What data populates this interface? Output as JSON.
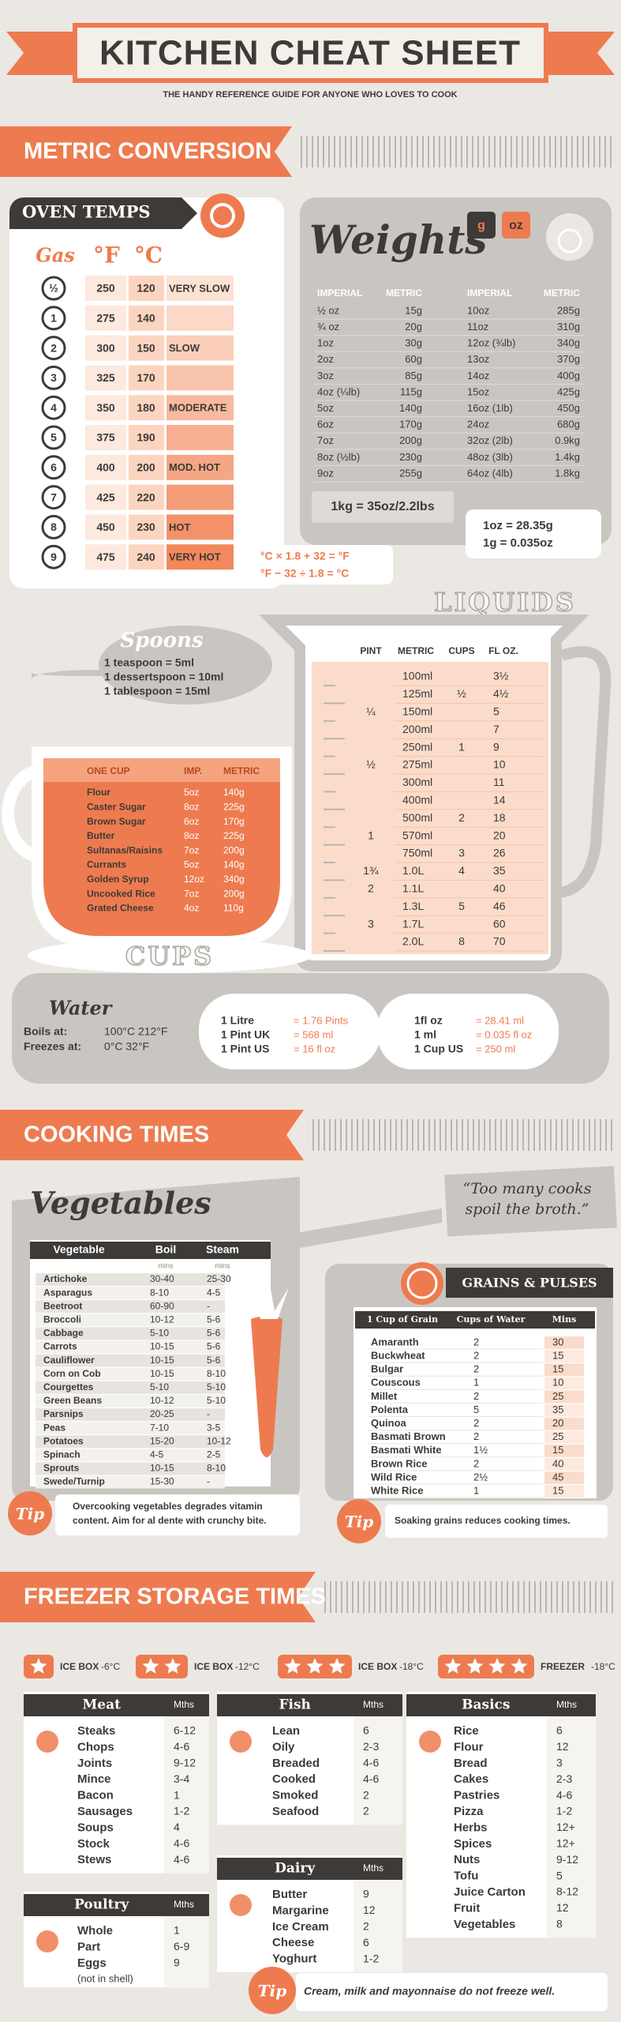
{
  "header": {
    "title": "KITCHEN CHEAT SHEET",
    "subtitle": "THE HANDY REFERENCE GUIDE FOR ANYONE WHO LOVES TO COOK"
  },
  "metric": {
    "banner": "METRIC CONVERSION"
  },
  "oven": {
    "title": "OVEN TEMPS",
    "headers": [
      "Gas",
      "°F",
      "°C"
    ],
    "rows": [
      {
        "gas": "½",
        "f": "250",
        "c": "120",
        "label": "VERY SLOW"
      },
      {
        "gas": "1",
        "f": "275",
        "c": "140"
      },
      {
        "gas": "2",
        "f": "300",
        "c": "150",
        "label": "SLOW"
      },
      {
        "gas": "3",
        "f": "325",
        "c": "170"
      },
      {
        "gas": "4",
        "f": "350",
        "c": "180",
        "label": "MODERATE"
      },
      {
        "gas": "5",
        "f": "375",
        "c": "190"
      },
      {
        "gas": "6",
        "f": "400",
        "c": "200",
        "label": "MOD. HOT"
      },
      {
        "gas": "7",
        "f": "425",
        "c": "220"
      },
      {
        "gas": "8",
        "f": "450",
        "c": "230",
        "label": "HOT"
      },
      {
        "gas": "9",
        "f": "475",
        "c": "240",
        "label": "VERY HOT"
      }
    ]
  },
  "weights": {
    "title": "Weights",
    "units": [
      "g",
      "oz"
    ],
    "headers": [
      "IMPERIAL",
      "METRIC",
      "IMPERIAL",
      "METRIC"
    ],
    "rows": [
      [
        "½ oz",
        "15g",
        "10oz",
        "285g"
      ],
      [
        "¾ oz",
        "20g",
        "11oz",
        "310g"
      ],
      [
        "1oz",
        "30g",
        "12oz (¾lb)",
        "340g"
      ],
      [
        "2oz",
        "60g",
        "13oz",
        "370g"
      ],
      [
        "3oz",
        "85g",
        "14oz",
        "400g"
      ],
      [
        "4oz (¼lb)",
        "115g",
        "15oz",
        "425g"
      ],
      [
        "5oz",
        "140g",
        "16oz (1lb)",
        "450g"
      ],
      [
        "6oz",
        "170g",
        "24oz",
        "680g"
      ],
      [
        "7oz",
        "200g",
        "32oz (2lb)",
        "0.9kg"
      ],
      [
        "8oz (½lb)",
        "230g",
        "48oz (3lb)",
        "1.4kg"
      ],
      [
        "9oz",
        "255g",
        "64oz (4lb)",
        "1.8kg"
      ]
    ],
    "kg": "1kg = 35oz/2.2lbs",
    "note": [
      "1oz = 28.35g",
      "1g = 0.035oz"
    ],
    "formula": [
      "°C × 1.8 + 32 = °F",
      "°F − 32 ÷ 1.8 = °C"
    ]
  },
  "liquids": {
    "title": "LIQUIDS",
    "headers": [
      "PINT",
      "METRIC",
      "CUPS",
      "FL OZ."
    ],
    "rows": [
      {
        "metric": "100ml",
        "floz": "3½"
      },
      {
        "metric": "125ml",
        "cups": "½",
        "floz": "4½"
      },
      {
        "pint": "¼",
        "metric": "150ml",
        "floz": "5"
      },
      {
        "metric": "200ml",
        "floz": "7"
      },
      {
        "metric": "250ml",
        "cups": "1",
        "floz": "9"
      },
      {
        "pint": "½",
        "metric": "275ml",
        "floz": "10"
      },
      {
        "metric": "300ml",
        "floz": "11"
      },
      {
        "metric": "400ml",
        "floz": "14"
      },
      {
        "metric": "500ml",
        "cups": "2",
        "floz": "18"
      },
      {
        "pint": "1",
        "metric": "570ml",
        "floz": "20"
      },
      {
        "metric": "750ml",
        "cups": "3",
        "floz": "26"
      },
      {
        "pint": "1¾",
        "metric": "1.0L",
        "cups": "4",
        "floz": "35"
      },
      {
        "pint": "2",
        "metric": "1.1L",
        "floz": "40"
      },
      {
        "metric": "1.3L",
        "cups": "5",
        "floz": "46"
      },
      {
        "pint": "3",
        "metric": "1.7L",
        "floz": "60"
      },
      {
        "metric": "2.0L",
        "cups": "8",
        "floz": "70"
      }
    ]
  },
  "spoons": {
    "title": "Spoons",
    "items": [
      "1 teaspoon = 5ml",
      "1 dessertspoon = 10ml",
      "1 tablespoon = 15ml"
    ]
  },
  "cups": {
    "title": "CUPS",
    "headers": [
      "ONE CUP",
      "IMP.",
      "METRIC"
    ],
    "rows": [
      [
        "Flour",
        "5oz",
        "140g"
      ],
      [
        "Caster Sugar",
        "8oz",
        "225g"
      ],
      [
        "Brown Sugar",
        "6oz",
        "170g"
      ],
      [
        "Butter",
        "8oz",
        "225g"
      ],
      [
        "Sultanas/Raisins",
        "7oz",
        "200g"
      ],
      [
        "Currants",
        "5oz",
        "140g"
      ],
      [
        "Golden Syrup",
        "12oz",
        "340g"
      ],
      [
        "Uncooked Rice",
        "7oz",
        "200g"
      ],
      [
        "Grated Cheese",
        "4oz",
        "110g"
      ]
    ]
  },
  "water": {
    "title": "Water",
    "rows": [
      [
        "Boils at:",
        "100°C 212°F"
      ],
      [
        "Freezes at:",
        "0°C 32°F"
      ]
    ]
  },
  "litre": [
    [
      "1 Litre",
      "= 1.76 Pints"
    ],
    [
      "1 Pint UK",
      "= 568 ml"
    ],
    [
      "1 Pint US",
      "= 16 fl oz"
    ]
  ],
  "floz": [
    [
      "1fl oz",
      "= 28.41 ml"
    ],
    [
      "1 ml",
      "= 0.035 fl oz"
    ],
    [
      "1 Cup US",
      "= 250 ml"
    ]
  ],
  "cooking": {
    "banner": "COOKING TIMES",
    "quote": [
      "“Too many cooks",
      "spoil the broth.”"
    ]
  },
  "vegetables": {
    "title": "Vegetables",
    "headers": [
      "Vegetable",
      "Boil",
      "Steam"
    ],
    "units": [
      "mins",
      "mins"
    ],
    "rows": [
      [
        "Artichoke",
        "30-40",
        "25-30"
      ],
      [
        "Asparagus",
        "8-10",
        "4-5"
      ],
      [
        "Beetroot",
        "60-90",
        "-"
      ],
      [
        "Broccoli",
        "10-12",
        "5-6"
      ],
      [
        "Cabbage",
        "5-10",
        "5-6"
      ],
      [
        "Carrots",
        "10-15",
        "5-6"
      ],
      [
        "Cauliflower",
        "10-15",
        "5-6"
      ],
      [
        "Corn on Cob",
        "10-15",
        "8-10"
      ],
      [
        "Courgettes",
        "5-10",
        "5-10"
      ],
      [
        "Green Beans",
        "10-12",
        "5-10"
      ],
      [
        "Parsnips",
        "20-25",
        "-"
      ],
      [
        "Peas",
        "7-10",
        "3-5"
      ],
      [
        "Potatoes",
        "15-20",
        "10-12"
      ],
      [
        "Spinach",
        "4-5",
        "2-5"
      ],
      [
        "Sprouts",
        "10-15",
        "8-10"
      ],
      [
        "Swede/Turnip",
        "15-30",
        "-"
      ]
    ],
    "tip": {
      "label": "Tip",
      "text": [
        "Overcooking vegetables degrades vitamin",
        "content. Aim for al dente with crunchy bite."
      ]
    }
  },
  "grains": {
    "title": "GRAINS & PULSES",
    "headers": [
      "1 Cup of Grain",
      "Cups of Water",
      "Mins"
    ],
    "rows": [
      [
        "Amaranth",
        "2",
        "30"
      ],
      [
        "Buckwheat",
        "2",
        "15"
      ],
      [
        "Bulgar",
        "2",
        "15"
      ],
      [
        "Couscous",
        "1",
        "10"
      ],
      [
        "Millet",
        "2",
        "25"
      ],
      [
        "Polenta",
        "5",
        "35"
      ],
      [
        "Quinoa",
        "2",
        "20"
      ],
      [
        "Basmati Brown",
        "2",
        "25"
      ],
      [
        "Basmati White",
        "1½",
        "15"
      ],
      [
        "Brown Rice",
        "2",
        "40"
      ],
      [
        "Wild Rice",
        "2½",
        "45"
      ],
      [
        "White Rice",
        "1",
        "15"
      ]
    ],
    "tip": {
      "label": "Tip",
      "text": "Soaking grains reduces cooking times."
    }
  },
  "freezer": {
    "banner": "FREEZER STORAGE TIMES",
    "levels": [
      {
        "label": "ICE BOX",
        "temp": "-6°C"
      },
      {
        "label": "ICE BOX",
        "temp": "-12°C"
      },
      {
        "label": "ICE BOX",
        "temp": "-18°C"
      },
      {
        "label": "FREEZER",
        "temp": "-18°C"
      }
    ],
    "groups": [
      {
        "title": "Meat",
        "unit": "Mths",
        "items": [
          [
            "Steaks",
            "6-12"
          ],
          [
            "Chops",
            "4-6"
          ],
          [
            "Joints",
            "9-12"
          ],
          [
            "Mince",
            "3-4"
          ],
          [
            "Bacon",
            "1"
          ],
          [
            "Sausages",
            "1-2"
          ],
          [
            "Soups",
            "4"
          ],
          [
            "Stock",
            "4-6"
          ],
          [
            "Stews",
            "4-6"
          ]
        ]
      },
      {
        "title": "Poultry",
        "unit": "Mths",
        "items": [
          [
            "Whole",
            "1"
          ],
          [
            "Part",
            "6-9"
          ],
          [
            "Eggs",
            "9"
          ]
        ],
        "note": "(not in shell)"
      },
      {
        "title": "Fish",
        "unit": "Mths",
        "items": [
          [
            "Lean",
            "6"
          ],
          [
            "Oily",
            "2-3"
          ],
          [
            "Breaded",
            "4-6"
          ],
          [
            "Cooked",
            "4-6"
          ],
          [
            "Smoked",
            "2"
          ],
          [
            "Seafood",
            "2"
          ]
        ]
      },
      {
        "title": "Dairy",
        "unit": "Mths",
        "items": [
          [
            "Butter",
            "9"
          ],
          [
            "Margarine",
            "12"
          ],
          [
            "Ice Cream",
            "2"
          ],
          [
            "Cheese",
            "6"
          ],
          [
            "Yoghurt",
            "1-2"
          ]
        ]
      },
      {
        "title": "Basics",
        "unit": "Mths",
        "items": [
          [
            "Rice",
            "6"
          ],
          [
            "Flour",
            "12"
          ],
          [
            "Bread",
            "3"
          ],
          [
            "Cakes",
            "2-3"
          ],
          [
            "Pastries",
            "4-6"
          ],
          [
            "Pizza",
            "1-2"
          ],
          [
            "Herbs",
            "12+"
          ],
          [
            "Spices",
            "12+"
          ],
          [
            "Nuts",
            "9-12"
          ],
          [
            "Tofu",
            "5"
          ],
          [
            "Juice Carton",
            "8-12"
          ],
          [
            "Fruit",
            "12"
          ],
          [
            "Vegetables",
            "8"
          ]
        ]
      }
    ],
    "tip": {
      "label": "Tip",
      "text": "Cream, milk and mayonnaise do not freeze well."
    }
  }
}
